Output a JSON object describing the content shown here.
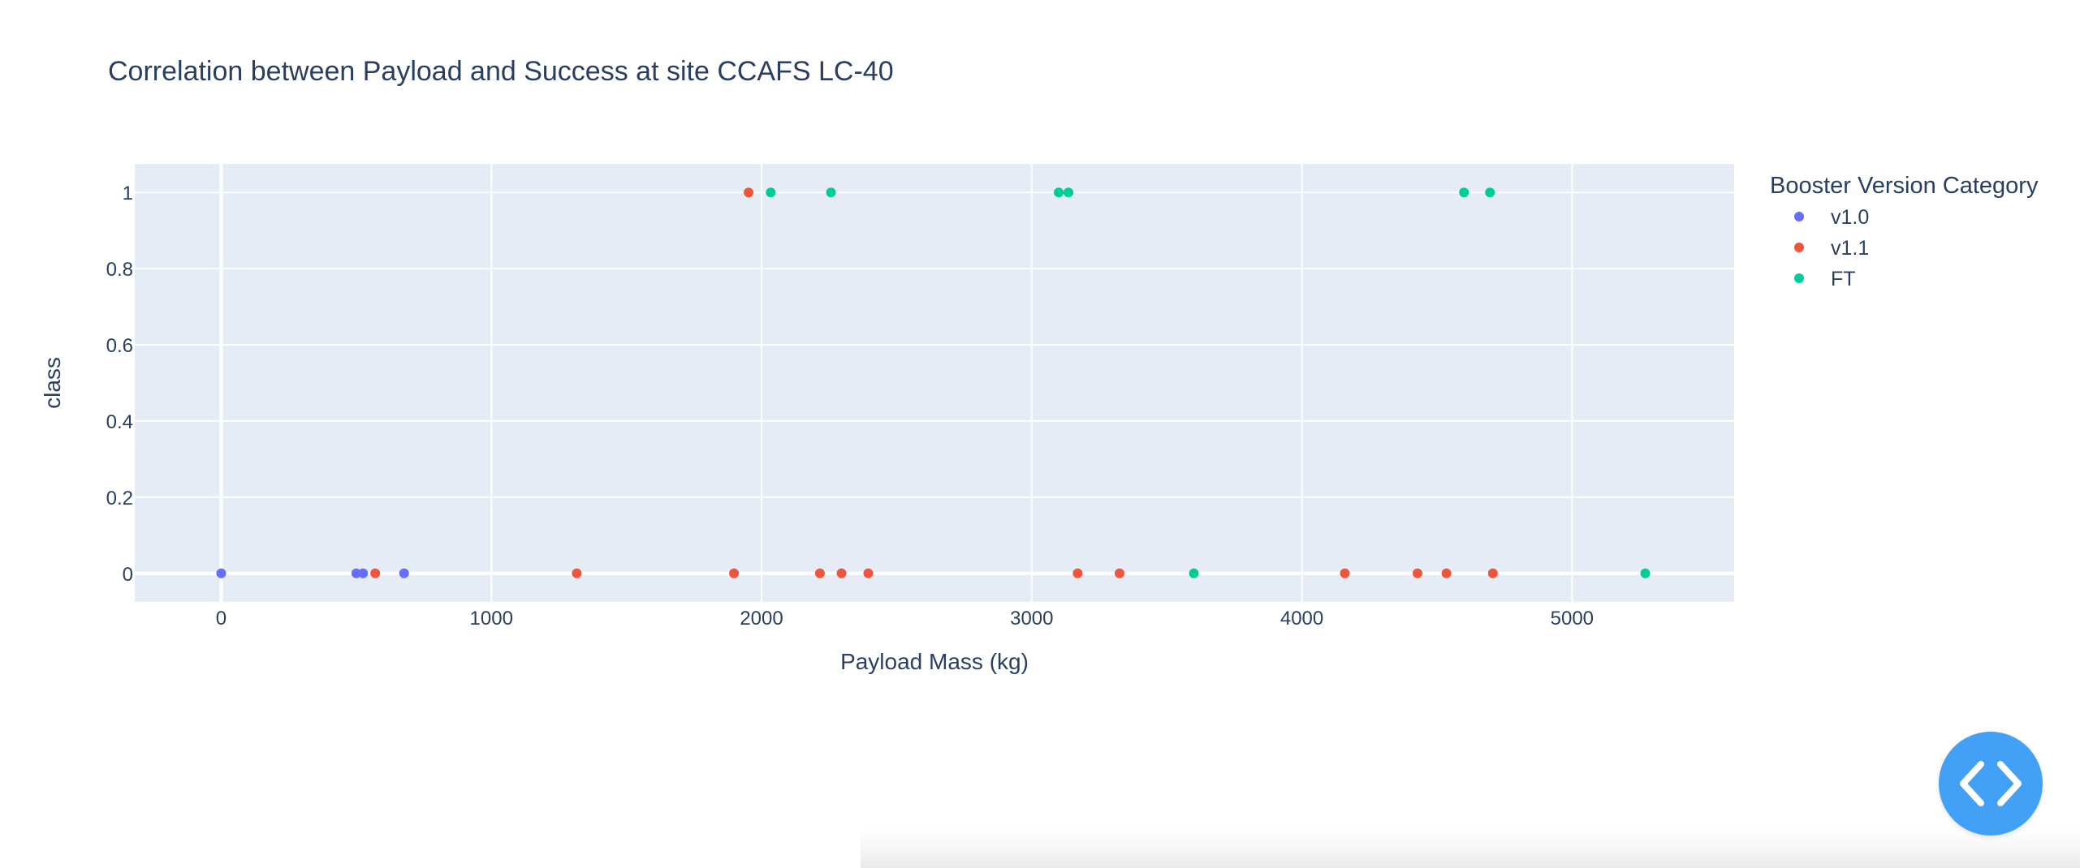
{
  "chart_data": {
    "type": "scatter",
    "title": "Correlation between Payload and Success at site CCAFS LC-40",
    "xlabel": "Payload Mass (kg)",
    "ylabel": "class",
    "xlim": [
      -320,
      5600
    ],
    "ylim": [
      -0.075,
      1.075
    ],
    "xticks": [
      0,
      1000,
      2000,
      3000,
      4000,
      5000
    ],
    "xtick_labels": [
      "0",
      "1000",
      "2000",
      "3000",
      "4000",
      "5000"
    ],
    "yticks": [
      0,
      0.2,
      0.4,
      0.6,
      0.8,
      1
    ],
    "ytick_labels": [
      "0",
      "0.2",
      "0.4",
      "0.6",
      "0.8",
      "1"
    ],
    "grid": true,
    "legend": {
      "title": "Booster Version Category",
      "placement": "right"
    },
    "series": [
      {
        "name": "v1.0",
        "color": "#636efa",
        "points": [
          [
            0,
            0
          ],
          [
            500,
            0
          ],
          [
            525,
            0
          ],
          [
            677,
            0
          ]
        ]
      },
      {
        "name": "v1.1",
        "color": "#ef553b",
        "points": [
          [
            570,
            0
          ],
          [
            1316,
            0
          ],
          [
            1898,
            0
          ],
          [
            1952,
            1
          ],
          [
            2216,
            0
          ],
          [
            2296,
            0
          ],
          [
            2395,
            0
          ],
          [
            3170,
            0
          ],
          [
            3325,
            0
          ],
          [
            4159,
            0
          ],
          [
            4428,
            0
          ],
          [
            4535,
            0
          ],
          [
            4707,
            0
          ]
        ]
      },
      {
        "name": "FT",
        "color": "#00cc96",
        "points": [
          [
            2034,
            1
          ],
          [
            2257,
            1
          ],
          [
            3100,
            1
          ],
          [
            3136,
            1
          ],
          [
            3600,
            0
          ],
          [
            4600,
            1
          ],
          [
            4696,
            1
          ],
          [
            5271,
            0
          ]
        ]
      }
    ]
  },
  "toggle": {
    "icon": "code-brackets-icon",
    "color": "#42a0f5"
  }
}
